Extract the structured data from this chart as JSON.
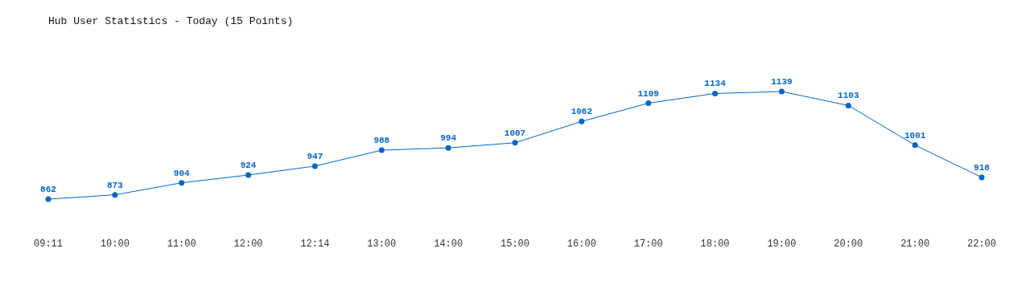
{
  "chart_data": {
    "type": "line",
    "title": "Hub User Statistics - Today (15 Points)",
    "categories": [
      "09:11",
      "10:00",
      "11:00",
      "12:00",
      "12:14",
      "13:00",
      "14:00",
      "15:00",
      "16:00",
      "17:00",
      "18:00",
      "19:00",
      "20:00",
      "21:00",
      "22:00"
    ],
    "series": [
      {
        "color": "#0066cc",
        "values": [
          862,
          873,
          904,
          924,
          947,
          988,
          994,
          1007,
          1062,
          1109,
          1134,
          1139,
          1103,
          1001,
          918
        ]
      }
    ],
    "data_labels": true,
    "marker": "circle"
  }
}
